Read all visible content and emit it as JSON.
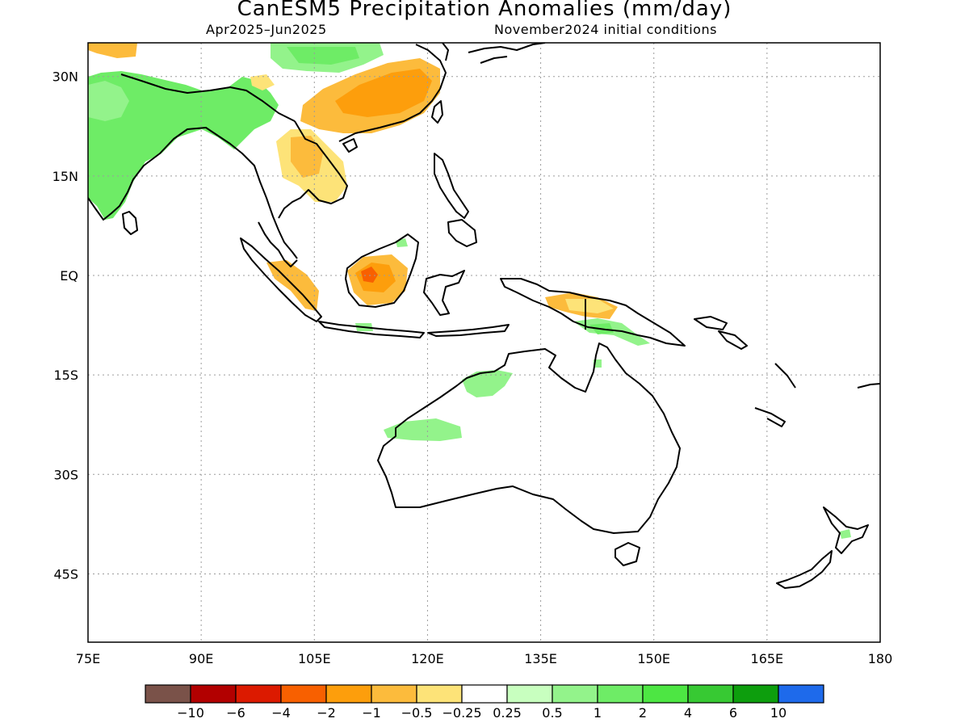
{
  "title": "CanESM5 Precipitation Anomalies (mm/day)",
  "period": "Apr2025–Jun2025",
  "initial_conditions": "November2024 initial conditions",
  "map": {
    "lon_range": [
      75,
      180
    ],
    "lat_range": [
      -55,
      35
    ],
    "lon_ticks": [
      "75E",
      "90E",
      "105E",
      "120E",
      "135E",
      "150E",
      "165E",
      "180"
    ],
    "lat_ticks": [
      "30N",
      "15N",
      "EQ",
      "15S",
      "30S",
      "45S"
    ],
    "gridlines": true
  },
  "legend": {
    "colors": [
      "#7a5249",
      "#b20000",
      "#dc1a00",
      "#f86000",
      "#fd9e0c",
      "#fcbb3c",
      "#fde378",
      "#ffffff",
      "#c8ffbf",
      "#93f38b",
      "#6eec66",
      "#4de643",
      "#37c933",
      "#0d9e0d",
      "#1e6aeb"
    ],
    "labels": [
      "−10",
      "−6",
      "−4",
      "−2",
      "−1",
      "−0.5",
      "−0.25",
      "0.25",
      "0.5",
      "1",
      "2",
      "4",
      "6",
      "10"
    ]
  },
  "anomaly_regions": [
    {
      "region": "India",
      "color": "#6eec66"
    },
    {
      "region": "Tibetan Plateau",
      "color": "#93f38b"
    },
    {
      "region": "South China",
      "color": "#fd9e0c"
    },
    {
      "region": "Indochina",
      "color": "#fde378"
    },
    {
      "region": "Sumatra",
      "color": "#fcbb3c"
    },
    {
      "region": "Borneo",
      "color": "#f86000"
    },
    {
      "region": "New Guinea",
      "color": "#fcbb3c"
    },
    {
      "region": "Northern Australia",
      "color": "#93f38b"
    },
    {
      "region": "Western Australia",
      "color": "#93f38b"
    }
  ]
}
